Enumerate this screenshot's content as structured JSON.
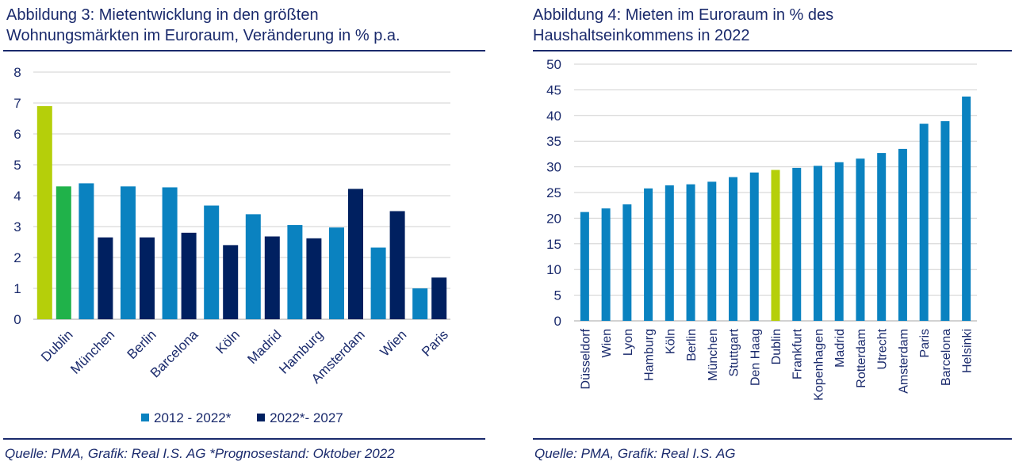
{
  "left": {
    "title_line1": "Abbildung 3: Mietentwicklung in den größten",
    "title_line2": "Wohnungsmärkten im Euroraum, Veränderung in % p.a.",
    "source": "Quelle: PMA, Grafik: Real I.S. AG *Prognosestand: Oktober 2022"
  },
  "right": {
    "title_line1": "Abbildung 4: Mieten im Euroraum in % des",
    "title_line2": "Haushaltseinkommens in 2022",
    "source": "Quelle: PMA, Grafik: Real I.S. AG"
  },
  "colors": {
    "series1": "#0a82c0",
    "series2": "#002060",
    "dublin_series1": "#b5cf0a",
    "dublin_series2": "#20b24a",
    "grid": "#d0d0d0",
    "text": "#1a2a6c"
  },
  "chart_data": [
    {
      "type": "bar",
      "categories": [
        "Dublin",
        "München",
        "Berlin",
        "Barcelona",
        "Köln",
        "Madrid",
        "Hamburg",
        "Amsterdam",
        "Wien",
        "Paris"
      ],
      "series": [
        {
          "name": "2012 - 2022*",
          "values": [
            6.9,
            4.4,
            4.3,
            4.27,
            3.68,
            3.4,
            3.05,
            2.97,
            2.32,
            1.0
          ]
        },
        {
          "name": "2022*- 2027",
          "values": [
            4.3,
            2.65,
            2.65,
            2.8,
            2.4,
            2.68,
            2.62,
            4.22,
            3.5,
            1.35
          ]
        }
      ],
      "ylim": [
        0,
        8
      ],
      "yticks": [
        0,
        1,
        2,
        3,
        4,
        5,
        6,
        7,
        8
      ],
      "grid": true,
      "legend": "bottom",
      "highlight": "Dublin"
    },
    {
      "type": "bar",
      "categories": [
        "Düsseldorf",
        "Wien",
        "Lyon",
        "Hamburg",
        "Köln",
        "Berlin",
        "München",
        "Stuttgart",
        "Den Haag",
        "Dublin",
        "Frankfurt",
        "Kopenhagen",
        "Madrid",
        "Rotterdam",
        "Utrecht",
        "Amsterdam",
        "Paris",
        "Barcelona",
        "Helsinki"
      ],
      "values": [
        21.2,
        21.9,
        22.7,
        25.8,
        26.4,
        26.6,
        27.1,
        28.0,
        28.9,
        29.4,
        29.8,
        30.2,
        30.9,
        31.6,
        32.7,
        33.5,
        38.4,
        38.9,
        43.7
      ],
      "ylim": [
        0,
        50
      ],
      "yticks": [
        0,
        5,
        10,
        15,
        20,
        25,
        30,
        35,
        40,
        45,
        50
      ],
      "grid": true,
      "highlight": "Dublin"
    }
  ]
}
